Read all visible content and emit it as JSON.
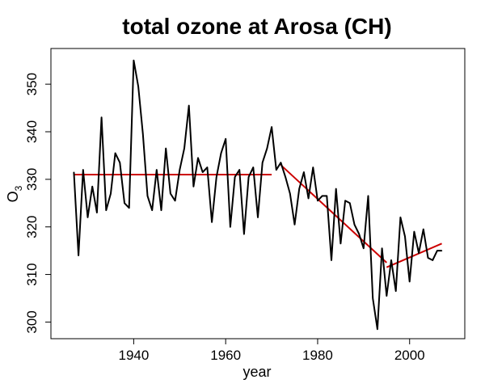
{
  "chart_data": {
    "type": "line",
    "title": "total ozone at Arosa (CH)",
    "xlabel": "year",
    "ylabel_main": "O",
    "ylabel_sub": "3",
    "xlim": [
      1922,
      2012
    ],
    "ylim": [
      296.5,
      357.5
    ],
    "xticks": [
      1940,
      1960,
      1980,
      2000
    ],
    "yticks": [
      300,
      310,
      320,
      330,
      340,
      350
    ],
    "grid": false,
    "series": [
      {
        "color": "#000000",
        "points": [
          [
            1927,
            331.5
          ],
          [
            1928,
            314
          ],
          [
            1929,
            332
          ],
          [
            1930,
            322
          ],
          [
            1931,
            328.5
          ],
          [
            1932,
            323
          ],
          [
            1933,
            343
          ],
          [
            1934,
            323.5
          ],
          [
            1935,
            327
          ],
          [
            1936,
            335.5
          ],
          [
            1937,
            333.5
          ],
          [
            1938,
            325
          ],
          [
            1939,
            324
          ],
          [
            1940,
            355
          ],
          [
            1941,
            349.5
          ],
          [
            1942,
            339.5
          ],
          [
            1943,
            326.5
          ],
          [
            1944,
            323.5
          ],
          [
            1945,
            332
          ],
          [
            1946,
            323.5
          ],
          [
            1947,
            336.5
          ],
          [
            1948,
            327
          ],
          [
            1949,
            325.5
          ],
          [
            1950,
            332
          ],
          [
            1951,
            336.5
          ],
          [
            1952,
            345.5
          ],
          [
            1953,
            328.5
          ],
          [
            1954,
            334.5
          ],
          [
            1955,
            331.5
          ],
          [
            1956,
            332.5
          ],
          [
            1957,
            321
          ],
          [
            1958,
            330.5
          ],
          [
            1959,
            335.5
          ],
          [
            1960,
            338.5
          ],
          [
            1961,
            320
          ],
          [
            1962,
            330.5
          ],
          [
            1963,
            332
          ],
          [
            1964,
            318.5
          ],
          [
            1965,
            330.5
          ],
          [
            1966,
            332.5
          ],
          [
            1967,
            322
          ],
          [
            1968,
            333.5
          ],
          [
            1969,
            336.5
          ],
          [
            1970,
            341
          ],
          [
            1971,
            332
          ],
          [
            1972,
            333.5
          ],
          [
            1973,
            330.5
          ],
          [
            1974,
            327
          ],
          [
            1975,
            320.5
          ],
          [
            1976,
            328
          ],
          [
            1977,
            331.5
          ],
          [
            1978,
            326
          ],
          [
            1979,
            332.5
          ],
          [
            1980,
            325.5
          ],
          [
            1981,
            326.5
          ],
          [
            1982,
            326.5
          ],
          [
            1983,
            313
          ],
          [
            1984,
            328
          ],
          [
            1985,
            316.5
          ],
          [
            1986,
            325.5
          ],
          [
            1987,
            325
          ],
          [
            1988,
            320.5
          ],
          [
            1989,
            318.5
          ],
          [
            1990,
            315.5
          ],
          [
            1991,
            326.5
          ],
          [
            1992,
            305
          ],
          [
            1993,
            298.5
          ],
          [
            1994,
            315.5
          ],
          [
            1995,
            305.5
          ],
          [
            1996,
            313
          ],
          [
            1997,
            306.5
          ],
          [
            1998,
            322
          ],
          [
            1999,
            318
          ],
          [
            2000,
            308.5
          ],
          [
            2001,
            319
          ],
          [
            2002,
            314.5
          ],
          [
            2003,
            319.5
          ],
          [
            2004,
            313.5
          ],
          [
            2005,
            313
          ],
          [
            2006,
            315
          ],
          [
            2007,
            315
          ]
        ]
      }
    ],
    "trend_lines": [
      {
        "color": "#cc0000",
        "x": [
          1927,
          1970
        ],
        "y": [
          331,
          331
        ]
      },
      {
        "color": "#cc0000",
        "x": [
          1972,
          1995
        ],
        "y": [
          333,
          312.5
        ]
      },
      {
        "color": "#cc0000",
        "x": [
          1995,
          2007
        ],
        "y": [
          311.5,
          316.5
        ]
      }
    ]
  }
}
